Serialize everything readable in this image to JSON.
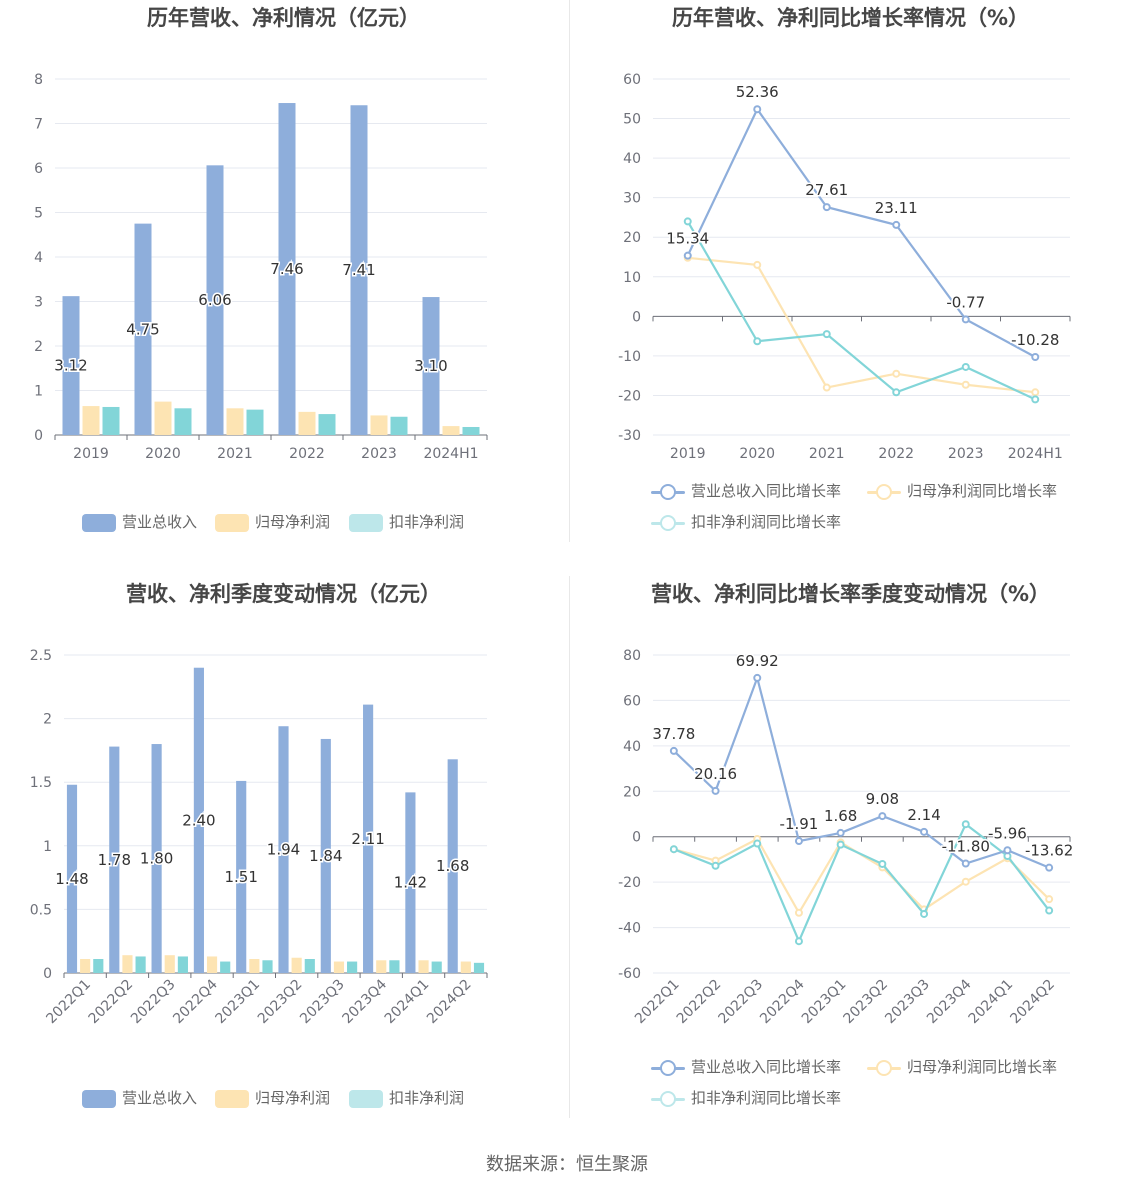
{
  "source": "数据来源：恒生聚源",
  "colors": {
    "revenue": "#8eaedb",
    "netprofit": "#fde4b3",
    "deducted": "#82d5d8",
    "grid": "#e6e9f0",
    "axis": "#6e7079",
    "label": "#333333"
  },
  "chart_data": [
    {
      "type": "bar",
      "title": "历年营收、净利情况（亿元）",
      "categories": [
        "2019",
        "2020",
        "2021",
        "2022",
        "2023",
        "2024H1"
      ],
      "ylim": [
        0,
        8
      ],
      "yticks": [
        "0",
        "1",
        "2",
        "3",
        "4",
        "5",
        "6",
        "7",
        "8"
      ],
      "series": [
        {
          "name": "营业总收入",
          "values": [
            3.12,
            4.75,
            6.06,
            7.46,
            7.41,
            3.1
          ],
          "labels": [
            "3.12",
            "4.75",
            "6.06",
            "7.46",
            "7.41",
            "3.10"
          ]
        },
        {
          "name": "归母净利润",
          "values": [
            0.65,
            0.75,
            0.6,
            0.52,
            0.44,
            0.2
          ]
        },
        {
          "name": "扣非净利润",
          "values": [
            0.63,
            0.6,
            0.57,
            0.47,
            0.41,
            0.18
          ]
        }
      ]
    },
    {
      "type": "line",
      "title": "历年营收、净利同比增长率情况（%）",
      "categories": [
        "2019",
        "2020",
        "2021",
        "2022",
        "2023",
        "2024H1"
      ],
      "ylim": [
        -30,
        60
      ],
      "yticks": [
        "-30",
        "-20",
        "-10",
        "0",
        "10",
        "20",
        "30",
        "40",
        "50",
        "60"
      ],
      "series": [
        {
          "name": "营业总收入同比增长率",
          "values": [
            15.34,
            52.36,
            27.61,
            23.11,
            -0.77,
            -10.28
          ],
          "labels": [
            "15.34",
            "52.36",
            "27.61",
            "23.11",
            "-0.77",
            "-10.28"
          ]
        },
        {
          "name": "归母净利润同比增长率",
          "values": [
            14.8,
            13.0,
            -18.0,
            -14.5,
            -17.3,
            -19.2
          ]
        },
        {
          "name": "扣非净利润同比增长率",
          "values": [
            24.0,
            -6.3,
            -4.5,
            -19.2,
            -12.8,
            -21.0
          ]
        }
      ]
    },
    {
      "type": "bar",
      "title": "营收、净利季度变动情况（亿元）",
      "categories": [
        "2022Q1",
        "2022Q2",
        "2022Q3",
        "2022Q4",
        "2023Q1",
        "2023Q2",
        "2023Q3",
        "2023Q4",
        "2024Q1",
        "2024Q2"
      ],
      "ylim": [
        0,
        2.5
      ],
      "yticks": [
        "0",
        "0.5",
        "1",
        "1.5",
        "2",
        "2.5"
      ],
      "series": [
        {
          "name": "营业总收入",
          "values": [
            1.48,
            1.78,
            1.8,
            2.4,
            1.51,
            1.94,
            1.84,
            2.11,
            1.42,
            1.68
          ],
          "labels": [
            "1.48",
            "1.78",
            "1.80",
            "2.40",
            "1.51",
            "1.94",
            "1.84",
            "2.11",
            "1.42",
            "1.68"
          ]
        },
        {
          "name": "归母净利润",
          "values": [
            0.11,
            0.14,
            0.14,
            0.13,
            0.11,
            0.12,
            0.09,
            0.1,
            0.1,
            0.09
          ]
        },
        {
          "name": "扣非净利润",
          "values": [
            0.11,
            0.13,
            0.13,
            0.09,
            0.1,
            0.11,
            0.09,
            0.1,
            0.09,
            0.08
          ]
        }
      ]
    },
    {
      "type": "line",
      "title": "营收、净利同比增长率季度变动情况（%）",
      "categories": [
        "2022Q1",
        "2022Q2",
        "2022Q3",
        "2022Q4",
        "2023Q1",
        "2023Q2",
        "2023Q3",
        "2023Q4",
        "2024Q1",
        "2024Q2"
      ],
      "ylim": [
        -60,
        80
      ],
      "yticks": [
        "-60",
        "-40",
        "-20",
        "0",
        "20",
        "40",
        "60",
        "80"
      ],
      "series": [
        {
          "name": "营业总收入同比增长率",
          "values": [
            37.78,
            20.16,
            69.92,
            -1.91,
            1.68,
            9.08,
            2.14,
            -11.8,
            -5.96,
            -13.62
          ],
          "labels": [
            "37.78",
            "20.16",
            "69.92",
            "-1.91",
            "1.68",
            "9.08",
            "2.14",
            "-11.80",
            "-5.96",
            "-13.62"
          ]
        },
        {
          "name": "归母净利润同比增长率",
          "values": [
            -5.5,
            -10.5,
            -1.0,
            -33.5,
            -2.5,
            -13.5,
            -32.0,
            -19.8,
            -9.5,
            -27.5
          ]
        },
        {
          "name": "扣非净利润同比增长率",
          "values": [
            -5.5,
            -12.8,
            -3.0,
            -46.0,
            -3.5,
            -12.0,
            -34.0,
            5.5,
            -8.5,
            -32.5
          ]
        }
      ]
    }
  ]
}
